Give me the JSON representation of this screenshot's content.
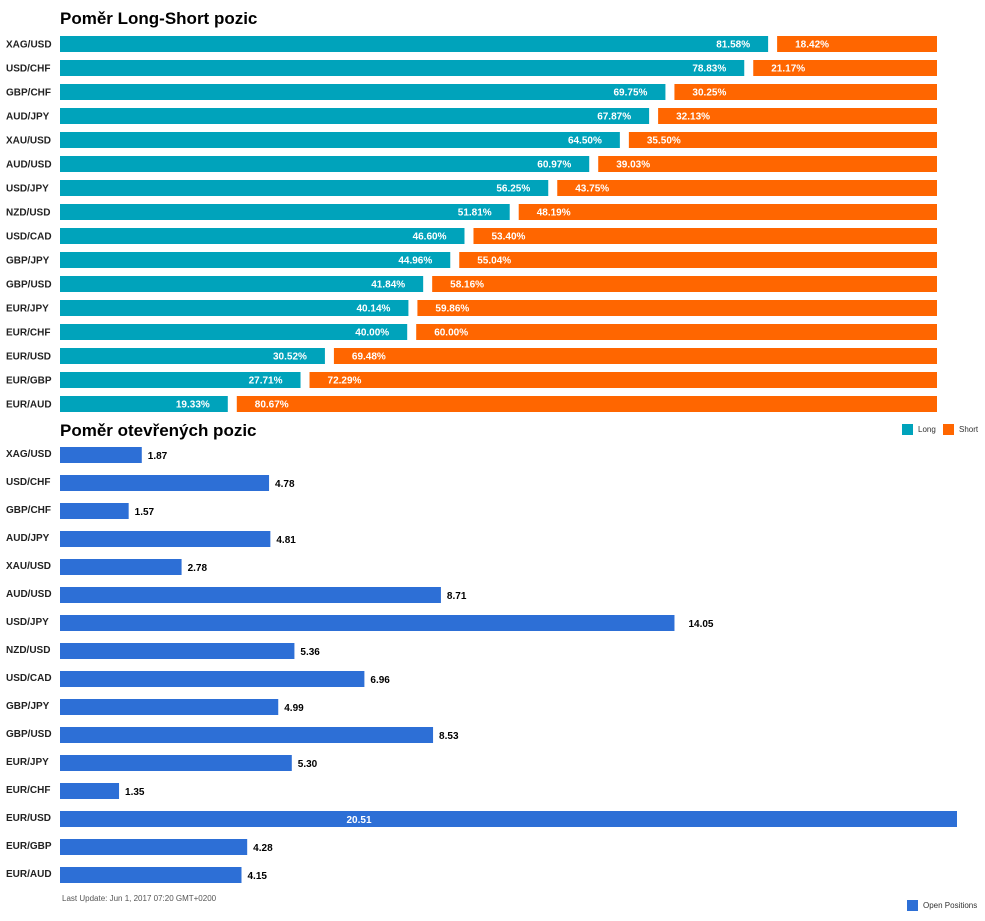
{
  "colors": {
    "long": "#00a3bb",
    "short": "#ff6600",
    "open": "#2d6fd6"
  },
  "chart_data": [
    {
      "type": "bar",
      "orientation": "horizontal",
      "stacked": true,
      "title": "Poměr Long-Short pozic",
      "categories": [
        "XAG/USD",
        "USD/CHF",
        "GBP/CHF",
        "AUD/JPY",
        "XAU/USD",
        "AUD/USD",
        "USD/JPY",
        "NZD/USD",
        "USD/CAD",
        "GBP/JPY",
        "GBP/USD",
        "EUR/JPY",
        "EUR/CHF",
        "EUR/USD",
        "EUR/GBP",
        "EUR/AUD"
      ],
      "series": [
        {
          "name": "Long",
          "values": [
            81.58,
            78.83,
            69.75,
            67.87,
            64.5,
            60.97,
            56.25,
            51.81,
            46.6,
            44.96,
            41.84,
            40.14,
            40.0,
            30.52,
            27.71,
            19.33
          ],
          "labels": [
            "81.58%",
            "78.83%",
            "69.75%",
            "67.87%",
            "64.50%",
            "60.97%",
            "56.25%",
            "51.81%",
            "46.60%",
            "44.96%",
            "41.84%",
            "40.14%",
            "40.00%",
            "30.52%",
            "27.71%",
            "19.33%"
          ]
        },
        {
          "name": "Short",
          "values": [
            18.42,
            21.17,
            30.25,
            32.13,
            35.5,
            39.03,
            43.75,
            48.19,
            53.4,
            55.04,
            58.16,
            59.86,
            60.0,
            69.48,
            72.29,
            80.67
          ],
          "labels": [
            "18.42%",
            "21.17%",
            "30.25%",
            "32.13%",
            "35.50%",
            "39.03%",
            "43.75%",
            "48.19%",
            "53.40%",
            "55.04%",
            "58.16%",
            "59.86%",
            "60.00%",
            "69.48%",
            "72.29%",
            "80.67%"
          ]
        }
      ],
      "xlim": [
        0,
        100
      ],
      "legend_position": "bottom-right"
    },
    {
      "type": "bar",
      "orientation": "horizontal",
      "title": "Poměr otevřených pozic",
      "categories": [
        "XAG/USD",
        "USD/CHF",
        "GBP/CHF",
        "AUD/JPY",
        "XAU/USD",
        "AUD/USD",
        "USD/JPY",
        "NZD/USD",
        "USD/CAD",
        "GBP/JPY",
        "GBP/USD",
        "EUR/JPY",
        "EUR/CHF",
        "EUR/USD",
        "EUR/GBP",
        "EUR/AUD"
      ],
      "series": [
        {
          "name": "Open Positions",
          "values": [
            1.87,
            4.78,
            1.57,
            4.81,
            2.78,
            8.71,
            14.05,
            5.36,
            6.96,
            4.99,
            8.53,
            5.3,
            1.35,
            20.51,
            4.28,
            4.15
          ],
          "labels": [
            "1.87",
            "4.78",
            "1.57",
            "4.81",
            "2.78",
            "8.71",
            "14.05",
            "5.36",
            "6.96",
            "4.99",
            "8.53",
            "5.30",
            "1.35",
            "20.51",
            "4.28",
            "4.15"
          ]
        }
      ],
      "xlim": [
        0,
        20.51
      ],
      "legend_position": "bottom-right"
    }
  ],
  "footer": {
    "last_update": "Last Update: Jun 1, 2017 07:20 GMT+0200"
  }
}
